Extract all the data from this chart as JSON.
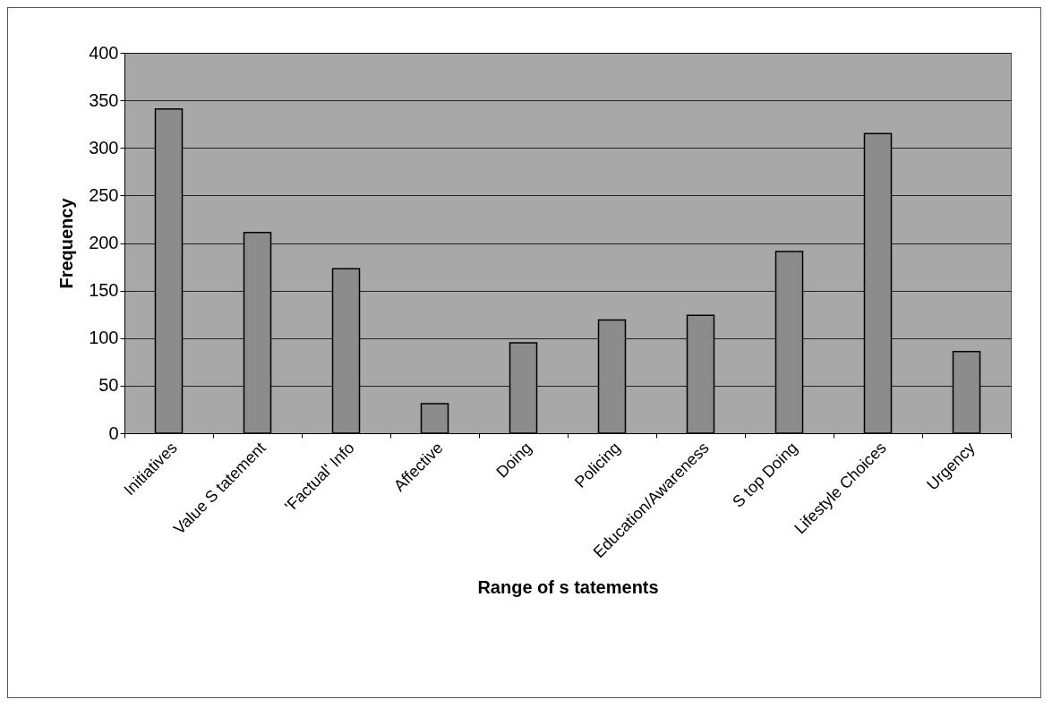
{
  "chart_data": {
    "type": "bar",
    "xlabel": "Range of s tatements",
    "ylabel": "Frequency",
    "categories": [
      "Initiatives",
      "Value S tatement",
      "'Factual' Info",
      "Affective",
      "Doing",
      "Policing",
      "Education/Awareness",
      "S top Doing",
      "Lifestyle Choices",
      "Urgency"
    ],
    "values": [
      341,
      211,
      173,
      31,
      95,
      119,
      124,
      191,
      315,
      86
    ],
    "color": "#8c8c8c",
    "ylim": [
      0,
      400
    ],
    "yticks": [
      0,
      50,
      100,
      150,
      200,
      250,
      300,
      350,
      400
    ],
    "grid": "y"
  }
}
